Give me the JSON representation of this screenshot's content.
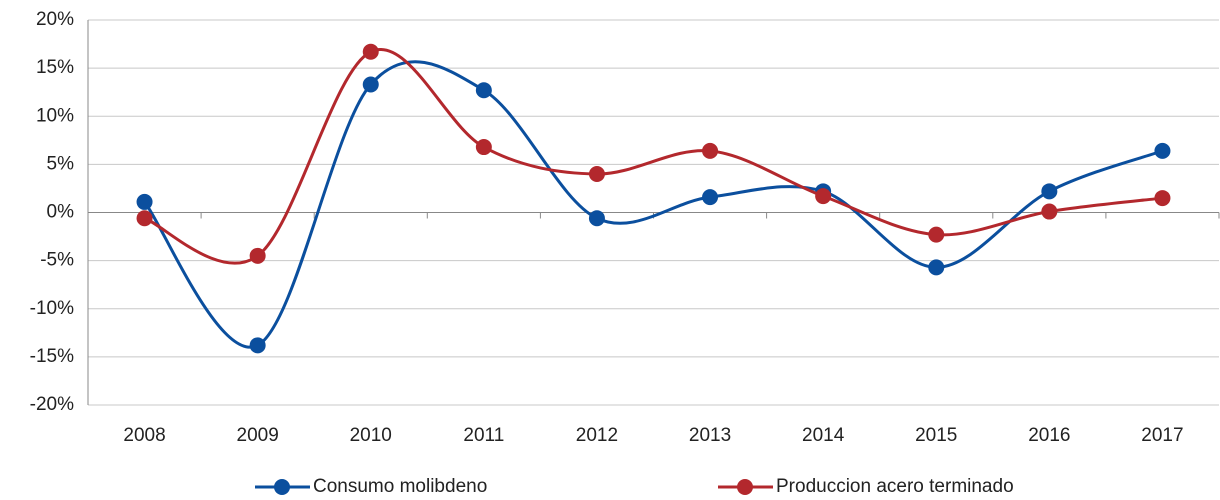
{
  "chart_data": {
    "type": "line",
    "categories": [
      "2008",
      "2009",
      "2010",
      "2011",
      "2012",
      "2013",
      "2014",
      "2015",
      "2016",
      "2017"
    ],
    "series": [
      {
        "name": "Consumo molibdeno",
        "color": "#0b4f9e",
        "values": [
          1.1,
          -13.8,
          13.3,
          12.7,
          -0.6,
          1.6,
          2.2,
          -5.7,
          2.2,
          6.4
        ]
      },
      {
        "name": "Produccion acero terminado",
        "color": "#b3282d",
        "values": [
          -0.6,
          -4.5,
          16.7,
          6.8,
          4.0,
          6.4,
          1.7,
          -2.3,
          0.1,
          1.5
        ]
      }
    ],
    "ylim": [
      -20,
      20
    ],
    "yticks": [
      {
        "value": -20,
        "label": "-20%"
      },
      {
        "value": -15,
        "label": "-15%"
      },
      {
        "value": -10,
        "label": "-10%"
      },
      {
        "value": -5,
        "label": "-5%"
      },
      {
        "value": 0,
        "label": "0%"
      },
      {
        "value": 5,
        "label": "5%"
      },
      {
        "value": 10,
        "label": "10%"
      },
      {
        "value": 15,
        "label": "15%"
      },
      {
        "value": 20,
        "label": "20%"
      }
    ],
    "grid": true,
    "legend": "bottom",
    "smooth": true
  }
}
